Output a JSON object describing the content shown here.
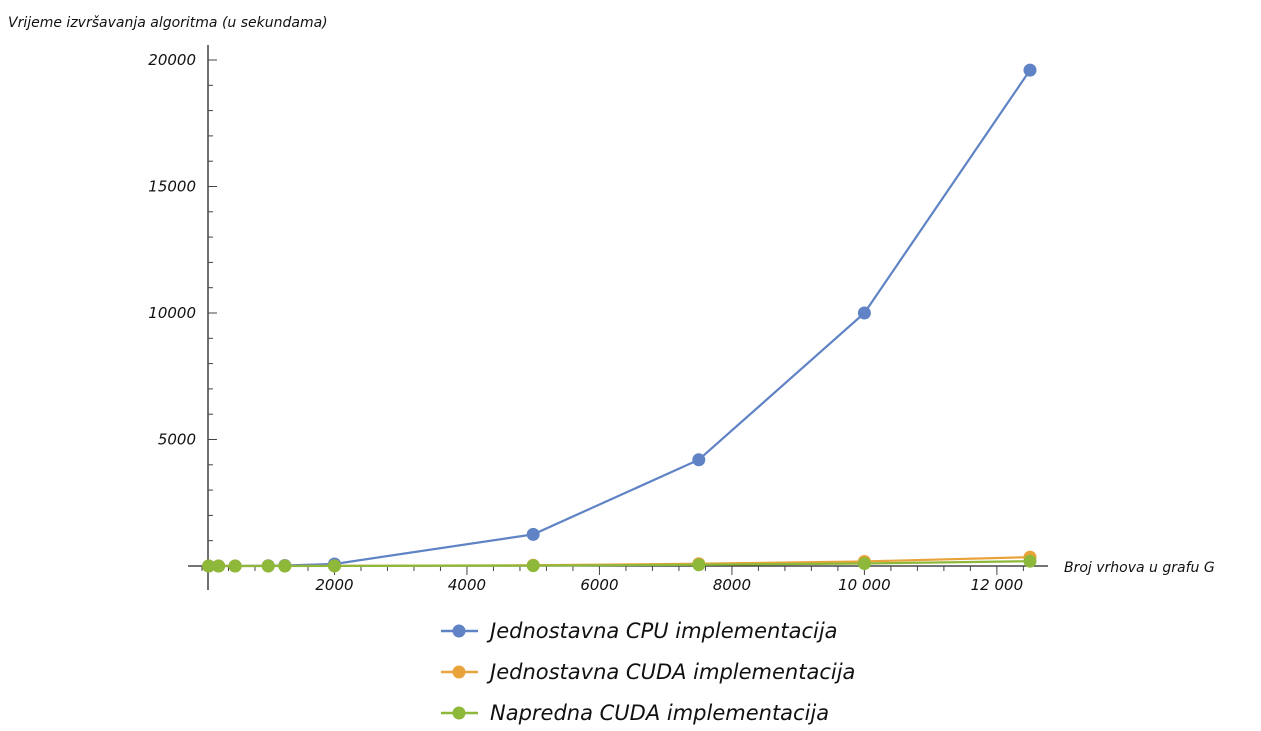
{
  "chart_data": {
    "type": "line",
    "title": "",
    "xlabel": "Broj vrhova u grafu G",
    "ylabel": "Vrijeme izvršavanja algoritma (u sekundama)",
    "xlim": [
      0,
      13000
    ],
    "ylim": [
      0,
      20000
    ],
    "x_ticks": [
      2000,
      4000,
      6000,
      8000,
      10000,
      12000
    ],
    "x_tick_labels": [
      "2000",
      "4000",
      "6000",
      "8000",
      "10 000",
      "12 000"
    ],
    "y_ticks": [
      5000,
      10000,
      15000,
      20000
    ],
    "y_tick_labels": [
      "5000",
      "10000",
      "15000",
      "20000"
    ],
    "legend_position": "bottom",
    "series": [
      {
        "name": "Jednostavna CPU implementacija",
        "color": "#5f83c4",
        "x": [
          100,
          250,
          500,
          1000,
          1250,
          2000,
          5000,
          7500,
          10000,
          12500
        ],
        "values": [
          0,
          1,
          2,
          10,
          20,
          80,
          1250,
          4200,
          10000,
          19600
        ]
      },
      {
        "name": "Jednostavna CUDA implementacija",
        "color": "#e8a33a",
        "x": [
          100,
          250,
          500,
          1000,
          1250,
          2000,
          5000,
          7500,
          10000,
          12500
        ],
        "values": [
          0,
          0,
          1,
          2,
          3,
          5,
          30,
          90,
          180,
          350
        ]
      },
      {
        "name": "Napredna CUDA implementacija",
        "color": "#8db83a",
        "x": [
          100,
          250,
          500,
          1000,
          1250,
          2000,
          5000,
          7500,
          10000,
          12500
        ],
        "values": [
          0,
          0,
          0,
          1,
          1,
          2,
          15,
          50,
          100,
          190
        ]
      }
    ]
  }
}
